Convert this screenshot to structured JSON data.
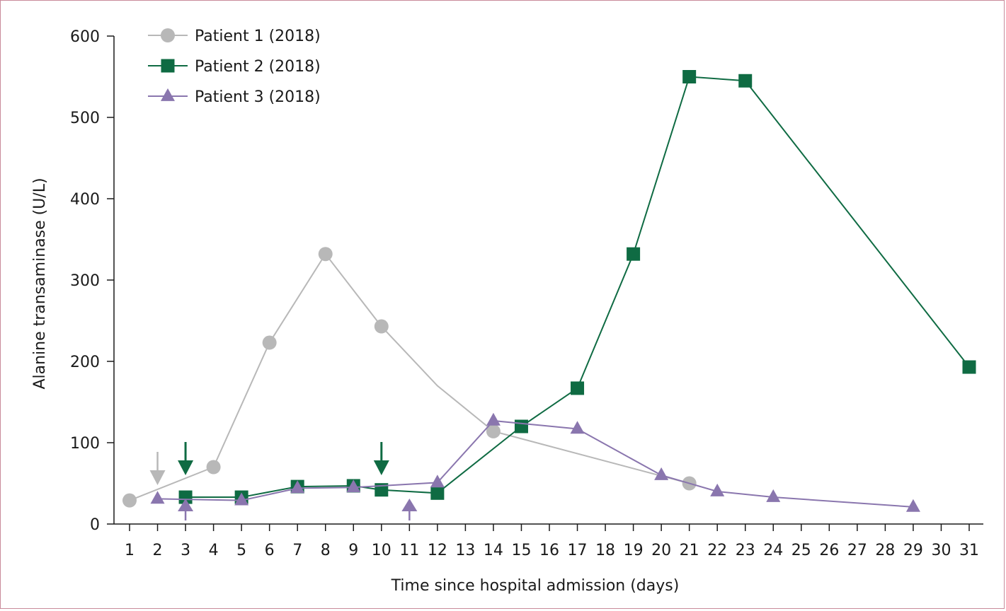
{
  "chart_data": {
    "type": "line",
    "title": "",
    "xlabel": "Time since hospital admission (days)",
    "ylabel": "Alanine transaminase (U/L)",
    "ylim": [
      0,
      600
    ],
    "yticks": [
      0,
      100,
      200,
      300,
      400,
      500,
      600
    ],
    "categories": [
      "1",
      "2",
      "3",
      "4",
      "5",
      "6",
      "7",
      "8",
      "9",
      "10",
      "11",
      "12",
      "13",
      "14",
      "15",
      "16",
      "17",
      "18",
      "19",
      "20",
      "21",
      "22",
      "23",
      "24",
      "25",
      "26",
      "27",
      "28",
      "29",
      "30",
      "31"
    ],
    "legend_position": "top-left",
    "grid": false,
    "series": [
      {
        "name": "Patient 1 (2018)",
        "color": "#b8b8b8",
        "marker": "circle",
        "points": [
          [
            1,
            29
          ],
          [
            4,
            70
          ],
          [
            6,
            223
          ],
          [
            8,
            332
          ],
          [
            10,
            243
          ],
          [
            12,
            170
          ],
          [
            14,
            114
          ],
          [
            21,
            50
          ]
        ],
        "marker_days": [
          1,
          4,
          6,
          8,
          10,
          14,
          21
        ]
      },
      {
        "name": "Patient 2 (2018)",
        "color": "#0f6b43",
        "marker": "square",
        "points": [
          [
            3,
            33
          ],
          [
            5,
            33
          ],
          [
            7,
            46
          ],
          [
            9,
            47
          ],
          [
            10,
            42
          ],
          [
            12,
            38
          ],
          [
            15,
            120
          ],
          [
            17,
            167
          ],
          [
            19,
            332
          ],
          [
            21,
            550
          ],
          [
            23,
            545
          ],
          [
            31,
            193
          ]
        ],
        "marker_days": [
          3,
          5,
          7,
          9,
          10,
          12,
          15,
          17,
          19,
          21,
          23,
          31
        ]
      },
      {
        "name": "Patient 3 (2018)",
        "color": "#8a76ae",
        "marker": "triangle",
        "points": [
          [
            2,
            31
          ],
          [
            5,
            29
          ],
          [
            7,
            44
          ],
          [
            9,
            45
          ],
          [
            12,
            51
          ],
          [
            14,
            127
          ],
          [
            17,
            117
          ],
          [
            20,
            60
          ],
          [
            22,
            40
          ],
          [
            24,
            33
          ],
          [
            29,
            21
          ]
        ],
        "marker_days": [
          2,
          5,
          7,
          9,
          12,
          14,
          17,
          20,
          22,
          24,
          29
        ]
      }
    ],
    "annotations": [
      {
        "type": "arrow-down",
        "series": "Patient 1 (2018)",
        "day": 2,
        "color": "#b8b8b8"
      },
      {
        "type": "arrow-down",
        "series": "Patient 2 (2018)",
        "day": 3,
        "color": "#0f6b43"
      },
      {
        "type": "arrow-down",
        "series": "Patient 2 (2018)",
        "day": 10,
        "color": "#0f6b43"
      },
      {
        "type": "arrow-up",
        "series": "Patient 3 (2018)",
        "day": 3,
        "color": "#8a76ae"
      },
      {
        "type": "arrow-up",
        "series": "Patient 3 (2018)",
        "day": 11,
        "color": "#8a76ae"
      }
    ]
  }
}
